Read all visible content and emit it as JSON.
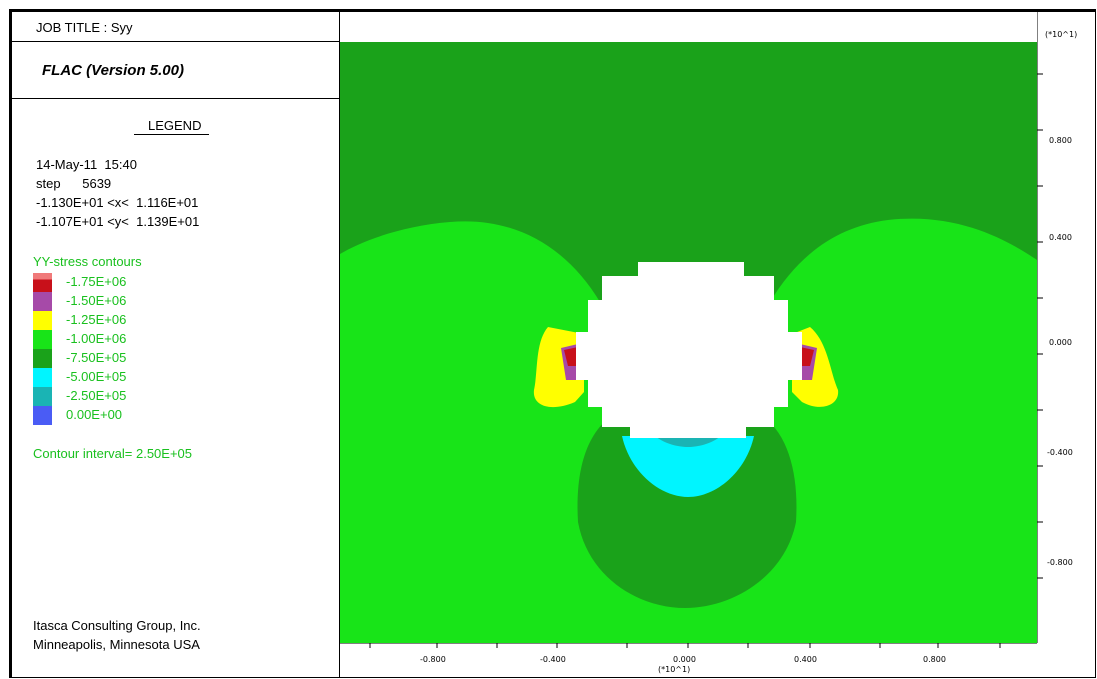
{
  "header": {
    "job_title": "JOB TITLE : Syy",
    "app_name": "FLAC (Version 5.00)"
  },
  "legend": {
    "heading": "LEGEND",
    "date_time": "14-May-11  15:40",
    "step": "step      5639",
    "x_range": "-1.130E+01 <x<  1.116E+01",
    "y_range": "-1.107E+01 <y<  1.139E+01",
    "contours_title": "YY-stress contours",
    "contour_levels": [
      {
        "label": "-1.75E+06",
        "color": "#c8101a"
      },
      {
        "label": "-1.50E+06",
        "color": "#a64aa8"
      },
      {
        "label": "-1.25E+06",
        "color": "#ffff00"
      },
      {
        "label": "-1.00E+06",
        "color": "#18e418"
      },
      {
        "label": "-7.50E+05",
        "color": "#1aa21a"
      },
      {
        "label": "-5.00E+05",
        "color": "#00f5ff"
      },
      {
        "label": "-2.50E+05",
        "color": "#1ab4b4"
      },
      {
        "label": "0.00E+00",
        "color": "#4a5cf5"
      }
    ],
    "top_swatch_color": "#f07a7a",
    "contour_interval": "Contour interval=  2.50E+05"
  },
  "footer": {
    "company": "Itasca Consulting Group, Inc.",
    "location": "Minneapolis, Minnesota  USA"
  },
  "axes": {
    "right_multiplier": "(*10^1)",
    "right_ticks": [
      "0.800",
      "0.400",
      "0.000",
      "-0.400",
      "-0.800"
    ],
    "bottom_ticks": [
      "-0.800",
      "-0.400",
      "0.000",
      "0.400",
      "0.800"
    ],
    "bottom_multiplier": "(*10^1)"
  },
  "plot_colors": {
    "dark_green": "#1aa21a",
    "light_green": "#18e418",
    "yellow": "#ffff00",
    "purple": "#a64aa8",
    "red": "#c8101a",
    "cyan": "#00f5ff",
    "teal": "#1ab4b4",
    "excavation": "#ffffff"
  }
}
